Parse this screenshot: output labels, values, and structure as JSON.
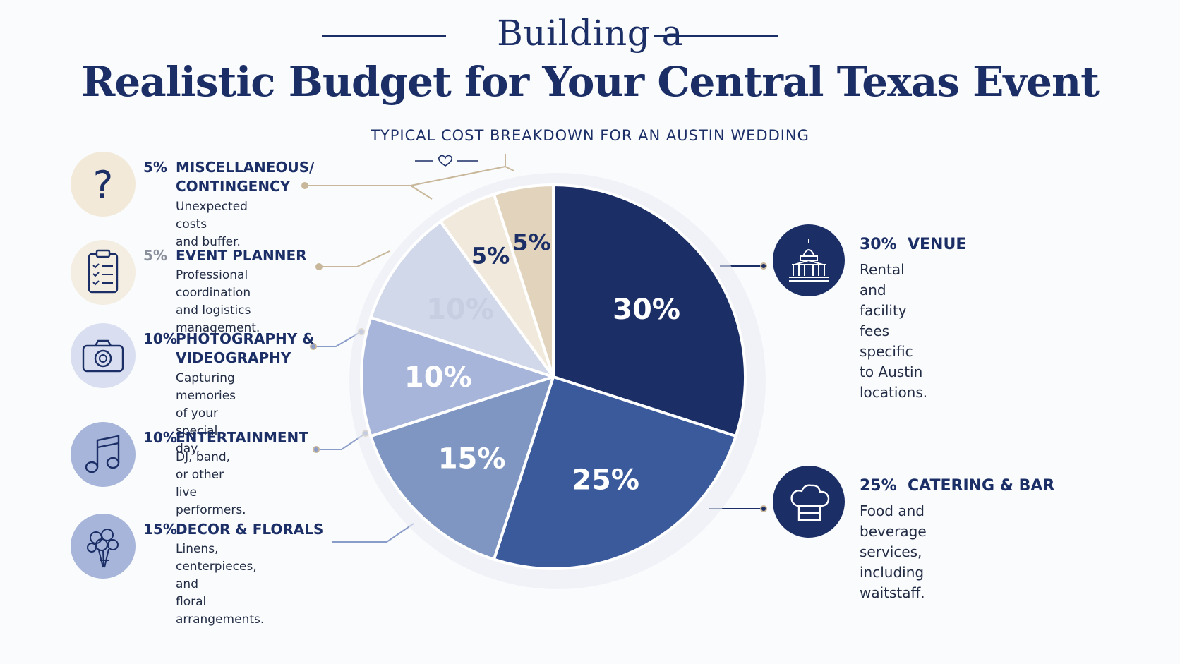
{
  "header": {
    "title_line1": "Building a",
    "title_line2": "Realistic Budget for Your Central Texas Event",
    "subtitle": "TYPICAL COST BREAKDOWN FOR AN AUSTIN WEDDING"
  },
  "chart_data": {
    "type": "pie",
    "title": "Building a Realistic Budget for Your Central Texas Event",
    "subtitle": "TYPICAL COST BREAKDOWN FOR AN AUSTIN WEDDING",
    "slices": [
      {
        "name": "VENUE",
        "value": 30,
        "label": "30%",
        "color": "#1b2e66",
        "label_color": "#ffffff"
      },
      {
        "name": "CATERING & BAR",
        "value": 25,
        "label": "25%",
        "color": "#3a5a9c",
        "label_color": "#ffffff"
      },
      {
        "name": "DECOR & FLORALS",
        "value": 15,
        "label": "15%",
        "color": "#7f96c2",
        "label_color": "#ffffff"
      },
      {
        "name": "ENTERTAINMENT",
        "value": 10,
        "label": "10%",
        "color": "#a6b5d9",
        "label_color": "#ffffff"
      },
      {
        "name": "PHOTOGRAPHY & VIDEOGRAPHY",
        "value": 10,
        "label": "10%",
        "color": "#d1d8ea",
        "label_color": "#c7cee2"
      },
      {
        "name": "EVENT PLANNER",
        "value": 5,
        "label": "5%",
        "color": "#f1eadc",
        "label_color": "#1b2e66"
      },
      {
        "name": "MISCELLANEOUS/ CONTINGENCY",
        "value": 5,
        "label": "5%",
        "color": "#e2d4bc",
        "label_color": "#1b2e66"
      }
    ]
  },
  "legend_left": [
    {
      "pct": "5%",
      "head_line1": "MISCELLANEOUS/",
      "head_line2": "CONTINGENCY",
      "desc_line1": "Unexpected costs",
      "desc_line2": "and buffer.",
      "icon": "question-icon",
      "icon_bg": "#f2e9d9"
    },
    {
      "pct": "5%",
      "head_line1": "EVENT PLANNER",
      "head_line2": "",
      "desc_line1": "Professional coordination",
      "desc_line2": "and logistics management.",
      "icon": "clipboard-icon",
      "icon_bg": "#f4eee2"
    },
    {
      "pct": "10%",
      "head_line1": "PHOTOGRAPHY &",
      "head_line2": "VIDEOGRAPHY",
      "desc_line1": "Capturing memories",
      "desc_line2": "of your special day.",
      "icon": "camera-icon",
      "icon_bg": "#d9dff0"
    },
    {
      "pct": "10%",
      "head_line1": "ENTERTAINMENT",
      "head_line2": "",
      "desc_line1": "DJ, band, or other",
      "desc_line2": "live performers.",
      "icon": "music-note-icon",
      "icon_bg": "#a6b5d9"
    },
    {
      "pct": "15%",
      "head_line1": "DECOR & FLORALS",
      "head_line2": "",
      "desc_line1": "Linens, centerpieces, and",
      "desc_line2": "floral arrangements.",
      "icon": "flowers-icon",
      "icon_bg": "#a6b5d9"
    }
  ],
  "legend_right": [
    {
      "pct": "30%",
      "head": "VENUE",
      "desc_line1": "Rental and facility fees",
      "desc_line2": "specific to Austin locations.",
      "icon": "capitol-icon",
      "icon_bg": "#1b2e66"
    },
    {
      "pct": "25%",
      "head": "CATERING & BAR",
      "desc_line1": "Food and beverage services,",
      "desc_line2": "including waitstaff.",
      "icon": "chef-hat-icon",
      "icon_bg": "#1b2e66"
    }
  ]
}
